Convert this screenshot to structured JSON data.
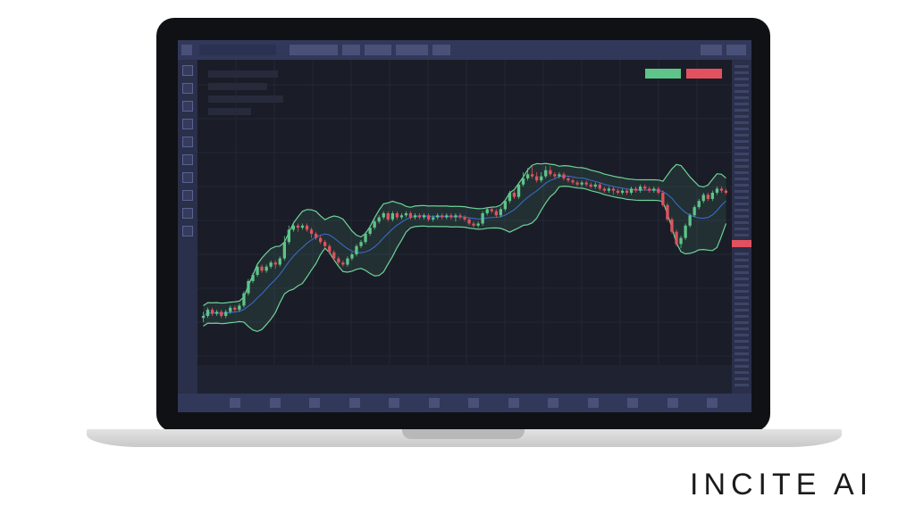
{
  "brand": {
    "name": "INCITE AI"
  },
  "colors": {
    "up_candle": "#5ec489",
    "down_candle": "#e2515f",
    "band_line": "#6fd39a",
    "middle_line": "#3b6fd4",
    "chart_background": "#1a1d27"
  },
  "order_buttons": {
    "buy_color": "#5ec489",
    "sell_color": "#e2515f"
  },
  "chart_data": {
    "type": "candlestick",
    "title": "",
    "indicator": "bollinger-bands",
    "grid": true,
    "price_range": [
      0,
      100
    ],
    "candles": [
      {
        "o": 9,
        "c": 10,
        "h": 12,
        "l": 7
      },
      {
        "o": 10,
        "c": 13,
        "h": 14,
        "l": 9
      },
      {
        "o": 13,
        "c": 11,
        "h": 14,
        "l": 10
      },
      {
        "o": 11,
        "c": 12,
        "h": 13,
        "l": 10
      },
      {
        "o": 12,
        "c": 10,
        "h": 13,
        "l": 9
      },
      {
        "o": 10,
        "c": 12,
        "h": 13,
        "l": 9
      },
      {
        "o": 12,
        "c": 14,
        "h": 15,
        "l": 11
      },
      {
        "o": 14,
        "c": 13,
        "h": 15,
        "l": 12
      },
      {
        "o": 13,
        "c": 15,
        "h": 16,
        "l": 12
      },
      {
        "o": 15,
        "c": 21,
        "h": 22,
        "l": 14
      },
      {
        "o": 21,
        "c": 27,
        "h": 28,
        "l": 20
      },
      {
        "o": 27,
        "c": 30,
        "h": 31,
        "l": 26
      },
      {
        "o": 30,
        "c": 34,
        "h": 35,
        "l": 29
      },
      {
        "o": 34,
        "c": 32,
        "h": 35,
        "l": 31
      },
      {
        "o": 32,
        "c": 34,
        "h": 35,
        "l": 31
      },
      {
        "o": 34,
        "c": 36,
        "h": 37,
        "l": 33
      },
      {
        "o": 36,
        "c": 35,
        "h": 37,
        "l": 33
      },
      {
        "o": 35,
        "c": 38,
        "h": 39,
        "l": 34
      },
      {
        "o": 38,
        "c": 46,
        "h": 49,
        "l": 37
      },
      {
        "o": 46,
        "c": 52,
        "h": 54,
        "l": 45
      },
      {
        "o": 52,
        "c": 54,
        "h": 55,
        "l": 51
      },
      {
        "o": 54,
        "c": 53,
        "h": 55,
        "l": 51
      },
      {
        "o": 53,
        "c": 54,
        "h": 55,
        "l": 52
      },
      {
        "o": 54,
        "c": 52,
        "h": 55,
        "l": 51
      },
      {
        "o": 52,
        "c": 50,
        "h": 53,
        "l": 48
      },
      {
        "o": 50,
        "c": 48,
        "h": 51,
        "l": 47
      },
      {
        "o": 48,
        "c": 46,
        "h": 49,
        "l": 45
      },
      {
        "o": 46,
        "c": 44,
        "h": 47,
        "l": 43
      },
      {
        "o": 44,
        "c": 41,
        "h": 45,
        "l": 40
      },
      {
        "o": 41,
        "c": 38,
        "h": 42,
        "l": 37
      },
      {
        "o": 38,
        "c": 36,
        "h": 39,
        "l": 35
      },
      {
        "o": 36,
        "c": 35,
        "h": 37,
        "l": 34
      },
      {
        "o": 35,
        "c": 38,
        "h": 39,
        "l": 34
      },
      {
        "o": 38,
        "c": 40,
        "h": 41,
        "l": 37
      },
      {
        "o": 40,
        "c": 44,
        "h": 45,
        "l": 39
      },
      {
        "o": 44,
        "c": 46,
        "h": 47,
        "l": 43
      },
      {
        "o": 46,
        "c": 50,
        "h": 51,
        "l": 45
      },
      {
        "o": 50,
        "c": 53,
        "h": 54,
        "l": 49
      },
      {
        "o": 53,
        "c": 56,
        "h": 57,
        "l": 52
      },
      {
        "o": 56,
        "c": 58,
        "h": 59,
        "l": 55
      },
      {
        "o": 58,
        "c": 60,
        "h": 61,
        "l": 57
      },
      {
        "o": 60,
        "c": 57,
        "h": 61,
        "l": 56
      },
      {
        "o": 57,
        "c": 60,
        "h": 61,
        "l": 56
      },
      {
        "o": 60,
        "c": 58,
        "h": 61,
        "l": 57
      },
      {
        "o": 58,
        "c": 59,
        "h": 60,
        "l": 57
      },
      {
        "o": 59,
        "c": 60,
        "h": 61,
        "l": 58
      },
      {
        "o": 60,
        "c": 58,
        "h": 61,
        "l": 57
      },
      {
        "o": 58,
        "c": 59,
        "h": 60,
        "l": 57
      },
      {
        "o": 59,
        "c": 58,
        "h": 60,
        "l": 57
      },
      {
        "o": 58,
        "c": 59,
        "h": 60,
        "l": 57
      },
      {
        "o": 59,
        "c": 57,
        "h": 60,
        "l": 56
      },
      {
        "o": 57,
        "c": 58,
        "h": 59,
        "l": 56
      },
      {
        "o": 58,
        "c": 59,
        "h": 60,
        "l": 57
      },
      {
        "o": 59,
        "c": 58,
        "h": 60,
        "l": 57
      },
      {
        "o": 58,
        "c": 59,
        "h": 60,
        "l": 57
      },
      {
        "o": 59,
        "c": 58,
        "h": 60,
        "l": 57
      },
      {
        "o": 58,
        "c": 59,
        "h": 60,
        "l": 56
      },
      {
        "o": 59,
        "c": 58,
        "h": 60,
        "l": 57
      },
      {
        "o": 58,
        "c": 57,
        "h": 59,
        "l": 56
      },
      {
        "o": 57,
        "c": 55,
        "h": 58,
        "l": 54
      },
      {
        "o": 55,
        "c": 54,
        "h": 56,
        "l": 53
      },
      {
        "o": 54,
        "c": 55,
        "h": 56,
        "l": 53
      },
      {
        "o": 55,
        "c": 60,
        "h": 61,
        "l": 54
      },
      {
        "o": 60,
        "c": 62,
        "h": 63,
        "l": 59
      },
      {
        "o": 62,
        "c": 61,
        "h": 63,
        "l": 60
      },
      {
        "o": 61,
        "c": 59,
        "h": 62,
        "l": 58
      },
      {
        "o": 59,
        "c": 62,
        "h": 63,
        "l": 58
      },
      {
        "o": 62,
        "c": 66,
        "h": 67,
        "l": 61
      },
      {
        "o": 66,
        "c": 70,
        "h": 71,
        "l": 65
      },
      {
        "o": 70,
        "c": 68,
        "h": 71,
        "l": 67
      },
      {
        "o": 68,
        "c": 74,
        "h": 75,
        "l": 67
      },
      {
        "o": 74,
        "c": 77,
        "h": 80,
        "l": 73
      },
      {
        "o": 77,
        "c": 79,
        "h": 82,
        "l": 76
      },
      {
        "o": 79,
        "c": 78,
        "h": 83,
        "l": 77
      },
      {
        "o": 78,
        "c": 76,
        "h": 80,
        "l": 75
      },
      {
        "o": 76,
        "c": 78,
        "h": 80,
        "l": 75
      },
      {
        "o": 78,
        "c": 81,
        "h": 83,
        "l": 77
      },
      {
        "o": 81,
        "c": 79,
        "h": 83,
        "l": 78
      },
      {
        "o": 79,
        "c": 78,
        "h": 80,
        "l": 77
      },
      {
        "o": 78,
        "c": 79,
        "h": 80,
        "l": 77
      },
      {
        "o": 79,
        "c": 77,
        "h": 80,
        "l": 76
      },
      {
        "o": 77,
        "c": 76,
        "h": 78,
        "l": 75
      },
      {
        "o": 76,
        "c": 75,
        "h": 77,
        "l": 74
      },
      {
        "o": 75,
        "c": 74,
        "h": 76,
        "l": 73
      },
      {
        "o": 74,
        "c": 75,
        "h": 76,
        "l": 73
      },
      {
        "o": 75,
        "c": 74,
        "h": 76,
        "l": 73
      },
      {
        "o": 74,
        "c": 73,
        "h": 75,
        "l": 72
      },
      {
        "o": 73,
        "c": 74,
        "h": 75,
        "l": 72
      },
      {
        "o": 74,
        "c": 72,
        "h": 75,
        "l": 71
      },
      {
        "o": 72,
        "c": 71,
        "h": 73,
        "l": 70
      },
      {
        "o": 71,
        "c": 72,
        "h": 73,
        "l": 70
      },
      {
        "o": 72,
        "c": 71,
        "h": 73,
        "l": 69
      },
      {
        "o": 71,
        "c": 70,
        "h": 72,
        "l": 69
      },
      {
        "o": 70,
        "c": 71,
        "h": 72,
        "l": 69
      },
      {
        "o": 71,
        "c": 70,
        "h": 72,
        "l": 69
      },
      {
        "o": 70,
        "c": 72,
        "h": 73,
        "l": 69
      },
      {
        "o": 72,
        "c": 71,
        "h": 73,
        "l": 70
      },
      {
        "o": 71,
        "c": 73,
        "h": 74,
        "l": 70
      },
      {
        "o": 73,
        "c": 72,
        "h": 74,
        "l": 71
      },
      {
        "o": 72,
        "c": 71,
        "h": 73,
        "l": 70
      },
      {
        "o": 71,
        "c": 72,
        "h": 73,
        "l": 70
      },
      {
        "o": 72,
        "c": 70,
        "h": 73,
        "l": 69
      },
      {
        "o": 70,
        "c": 64,
        "h": 71,
        "l": 63
      },
      {
        "o": 64,
        "c": 57,
        "h": 65,
        "l": 56
      },
      {
        "o": 57,
        "c": 51,
        "h": 58,
        "l": 50
      },
      {
        "o": 51,
        "c": 45,
        "h": 52,
        "l": 44
      },
      {
        "o": 45,
        "c": 48,
        "h": 49,
        "l": 43
      },
      {
        "o": 48,
        "c": 54,
        "h": 55,
        "l": 47
      },
      {
        "o": 54,
        "c": 59,
        "h": 60,
        "l": 53
      },
      {
        "o": 59,
        "c": 63,
        "h": 64,
        "l": 58
      },
      {
        "o": 63,
        "c": 66,
        "h": 67,
        "l": 62
      },
      {
        "o": 66,
        "c": 69,
        "h": 70,
        "l": 65
      },
      {
        "o": 69,
        "c": 67,
        "h": 70,
        "l": 66
      },
      {
        "o": 67,
        "c": 70,
        "h": 71,
        "l": 66
      },
      {
        "o": 70,
        "c": 72,
        "h": 73,
        "l": 69
      },
      {
        "o": 72,
        "c": 71,
        "h": 73,
        "l": 70
      },
      {
        "o": 71,
        "c": 70,
        "h": 72,
        "l": 69
      }
    ]
  }
}
